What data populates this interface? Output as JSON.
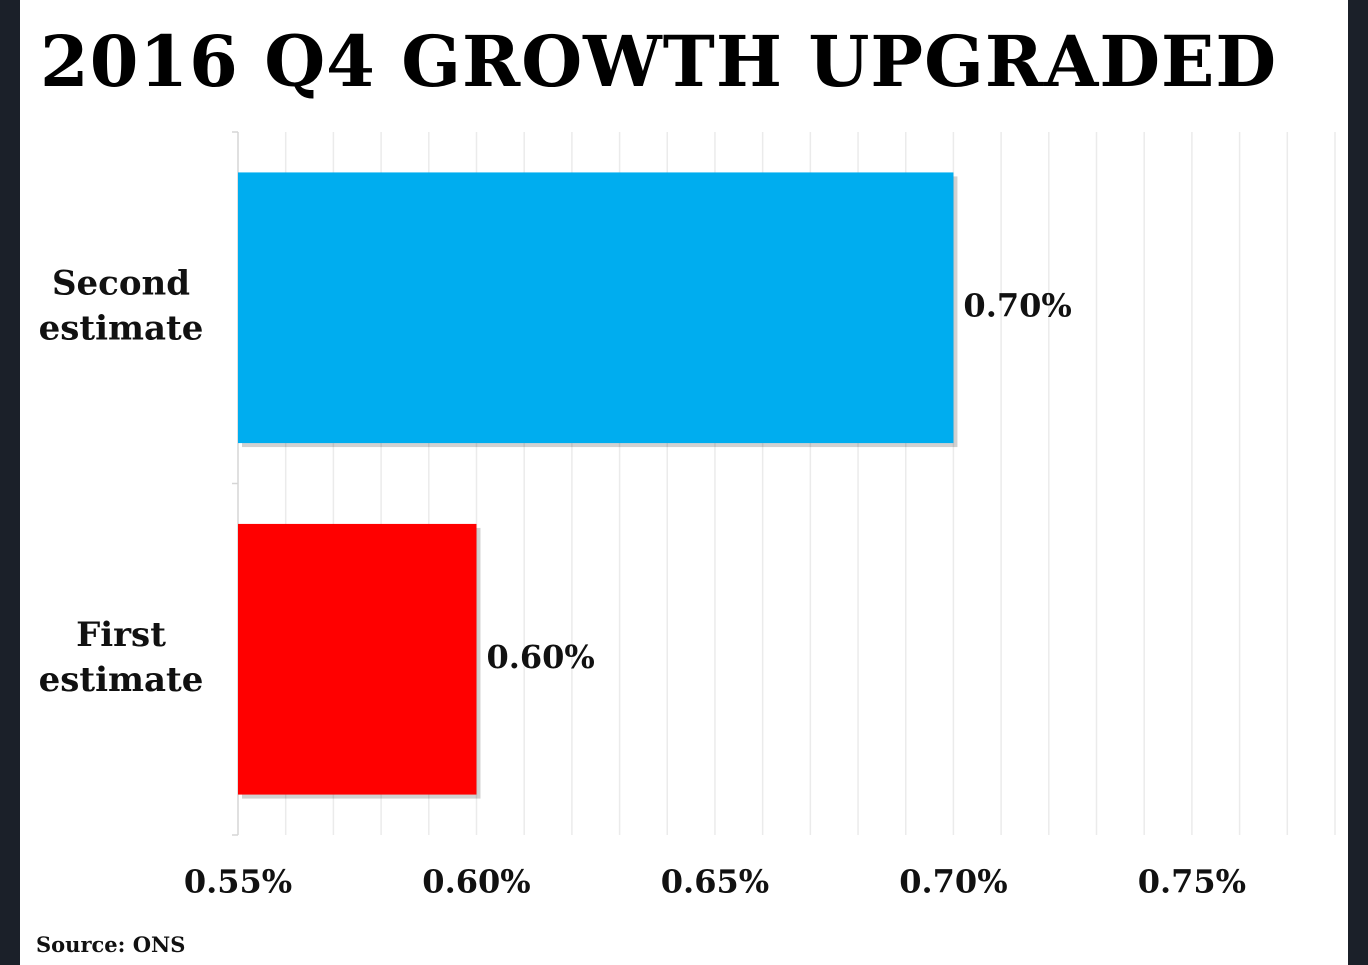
{
  "chart_data": {
    "type": "bar",
    "orientation": "horizontal",
    "title": "2016 Q4 GROWTH UPGRADED",
    "categories": [
      "Second estimate",
      "First estimate"
    ],
    "category_lines": [
      [
        "Second",
        "estimate"
      ],
      [
        "First",
        "estimate"
      ]
    ],
    "values": [
      0.7,
      0.6
    ],
    "data_labels": [
      "0.70%",
      "0.60%"
    ],
    "bar_colors": [
      "#00adef",
      "#ff0000"
    ],
    "xlim": [
      0.55,
      0.78
    ],
    "xticks": [
      0.55,
      0.6,
      0.65,
      0.7,
      0.75
    ],
    "xtick_labels": [
      "0.55%",
      "0.60%",
      "0.65%",
      "0.70%",
      "0.75%"
    ],
    "xlabel": "",
    "ylabel": "",
    "grid": true,
    "legend": false
  },
  "source": "Source: ONS"
}
